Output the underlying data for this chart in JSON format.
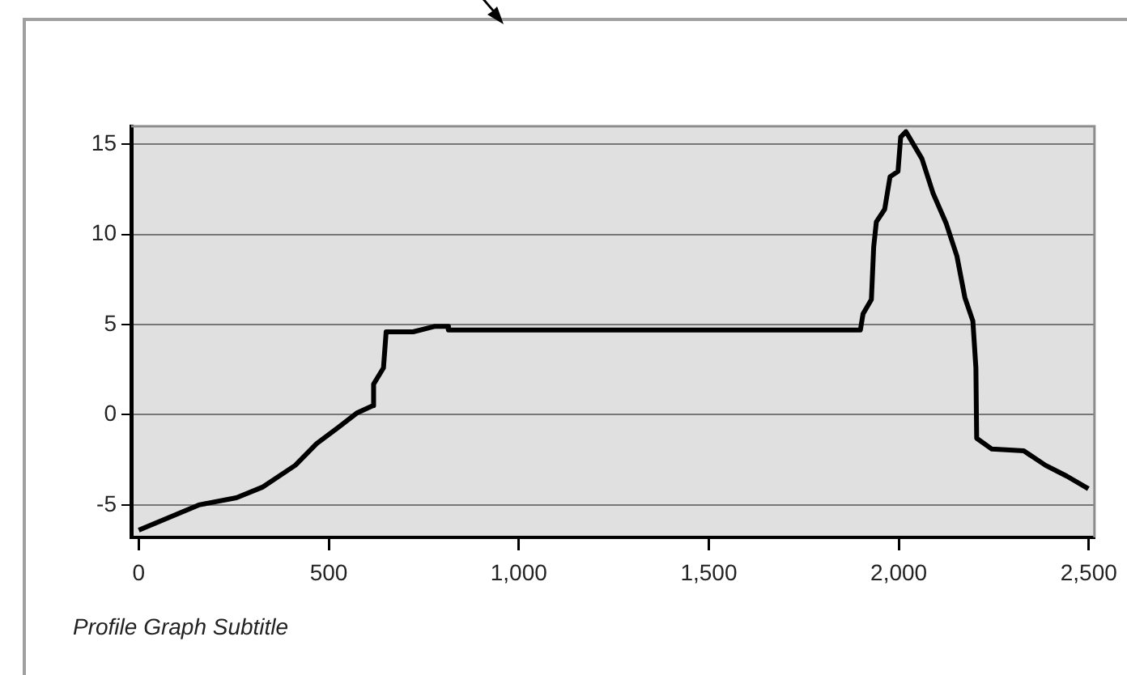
{
  "chart_data": {
    "type": "line",
    "subtitle": "Profile Graph Subtitle",
    "xlim": [
      -20,
      2515
    ],
    "xticks": [
      0,
      500,
      {
        "value": 1000,
        "label": "1,000"
      },
      {
        "value": 1500,
        "label": "1,500"
      },
      {
        "value": 2000,
        "label": "2,000"
      },
      {
        "value": 2500,
        "label": "2,500"
      }
    ],
    "ylim": [
      -6.8,
      16
    ],
    "yticks": [
      -5,
      0,
      5,
      10,
      15
    ],
    "grid": "y",
    "marker": "none",
    "line_style": "solid",
    "series": [
      {
        "color": "#000000",
        "x": [
          0,
          158,
          257,
          327,
          412,
          468,
          525,
          574,
          616,
          618,
          644,
          651,
          722,
          778,
          813,
          815,
          1899,
          1906,
          1928,
          1934,
          1941,
          1963,
          1977,
          1998,
          2005,
          2019,
          2061,
          2090,
          2125,
          2153,
          2174,
          2195,
          2203,
          2205,
          2245,
          2329,
          2386,
          2442,
          2499
        ],
        "values": [
          -6.4,
          -5.0,
          -4.6,
          -4.0,
          -2.8,
          -1.6,
          -0.7,
          0.1,
          0.5,
          1.7,
          2.6,
          4.6,
          4.6,
          4.9,
          4.9,
          4.7,
          4.7,
          5.6,
          6.4,
          9.3,
          10.7,
          11.4,
          13.2,
          13.5,
          15.4,
          15.7,
          14.2,
          12.3,
          10.6,
          8.8,
          6.5,
          5.2,
          2.6,
          -1.3,
          -1.9,
          -2.0,
          -2.8,
          -3.4,
          -4.1
        ]
      }
    ]
  }
}
